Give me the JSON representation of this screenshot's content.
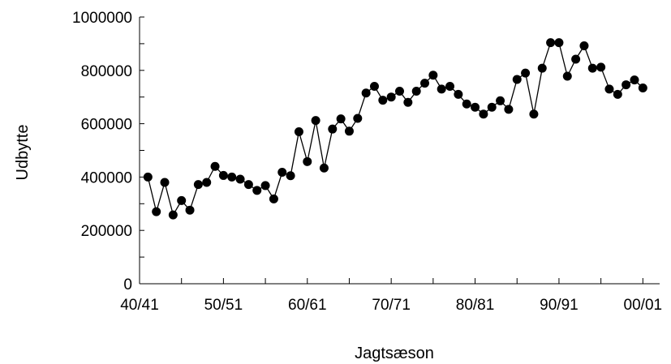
{
  "chart_data": {
    "type": "line",
    "xlabel": "Jagtsæson",
    "ylabel": "Udbytte",
    "ylim": [
      0,
      1000000
    ],
    "yticks": [
      0,
      200000,
      400000,
      600000,
      800000,
      1000000
    ],
    "ytick_labels": [
      "0",
      "200000",
      "400000",
      "600000",
      "800000",
      "1000000"
    ],
    "xlim": [
      1940,
      2002
    ],
    "xticks": [
      1940,
      1950,
      1960,
      1970,
      1980,
      1990,
      2000
    ],
    "xtick_labels": [
      "40/41",
      "50/51",
      "60/61",
      "70/71",
      "80/81",
      "90/91",
      "00/01"
    ],
    "grid": false,
    "legend": "none",
    "marker": "filled-circle",
    "colors": {
      "line": "#000000",
      "marker": "#000000"
    },
    "series": [
      {
        "x": [
          1941,
          1942,
          1943,
          1944,
          1945,
          1946,
          1947,
          1948,
          1949,
          1950,
          1951,
          1952,
          1953,
          1954,
          1955,
          1956,
          1957,
          1958,
          1959,
          1960,
          1961,
          1962,
          1963,
          1964,
          1965,
          1966,
          1967,
          1968,
          1969,
          1970,
          1971,
          1972,
          1973,
          1974,
          1975,
          1976,
          1977,
          1978,
          1979,
          1980,
          1981,
          1982,
          1983,
          1984,
          1985,
          1986,
          1987,
          1988,
          1989,
          1990,
          1991,
          1992,
          1993,
          1994,
          1995,
          1996,
          1997,
          1998,
          1999,
          2000
        ],
        "values": [
          400000,
          270000,
          380000,
          258000,
          312000,
          276000,
          372000,
          380000,
          440000,
          406000,
          400000,
          392000,
          372000,
          350000,
          368000,
          318000,
          418000,
          405000,
          570000,
          458000,
          612000,
          434000,
          580000,
          618000,
          572000,
          620000,
          715000,
          740000,
          688000,
          700000,
          722000,
          680000,
          722000,
          752000,
          782000,
          730000,
          740000,
          710000,
          674000,
          662000,
          636000,
          662000,
          686000,
          654000,
          766000,
          790000,
          636000,
          808000,
          904000,
          904000,
          778000,
          842000,
          892000,
          808000,
          812000,
          730000,
          710000,
          746000,
          764000,
          734000
        ]
      }
    ]
  }
}
